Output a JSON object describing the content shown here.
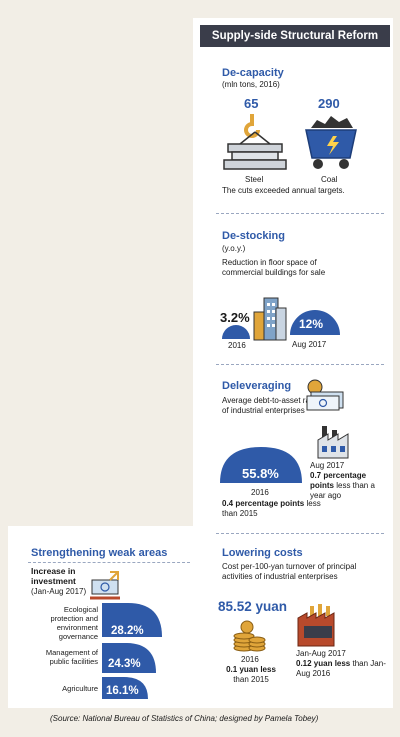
{
  "header": {
    "title": "Supply-side Structural Reform"
  },
  "decapacity": {
    "title": "De-capacity",
    "unit": "(mln tons, 2016)",
    "steel_value": "65",
    "steel_label": "Steel",
    "coal_value": "290",
    "coal_label": "Coal",
    "note": "The cuts exceeded annual targets."
  },
  "destocking": {
    "title": "De-stocking",
    "unit": "(y.o.y.)",
    "desc": "Reduction in floor space of commercial buildings for sale",
    "v2016": "3.2%",
    "l2016": "2016",
    "vAug": "12%",
    "lAug": "Aug 2017"
  },
  "deleveraging": {
    "title": "Deleveraging",
    "desc": "Average debt-to-asset ratio of industrial enterprises",
    "big_value": "55.8%",
    "big_year": "2016",
    "big_note_bold": "0.4 percentage points",
    "big_note_rest": "less than 2015",
    "aug_label": "Aug 2017",
    "aug_note_bold": "0.7 percentage points",
    "aug_note_rest": "less than a year ago"
  },
  "weak": {
    "title": "Strengthening weak areas",
    "sub_bold": "Increase in investment",
    "sub_rest": "(Jan-Aug 2017)",
    "items": [
      {
        "label": "Ecological protection and environment governance",
        "value": "28.2%"
      },
      {
        "label": "Management of public facilities",
        "value": "24.3%"
      },
      {
        "label": "Agriculture",
        "value": "16.1%"
      }
    ]
  },
  "costs": {
    "title": "Lowering costs",
    "desc": "Cost per-100-yan turnover of principal activities of industrial enterprises",
    "value": "85.52 yuan",
    "l2016": "2016",
    "n2016_bold": "0.1 yuan less",
    "n2016_rest": "than 2015",
    "lAug": "Jan-Aug 2017",
    "nAug_bold": "0.12 yuan less",
    "nAug_rest": "than Jan-Aug 2016"
  },
  "source": "(Source: National Bureau of Statistics of China; designed by Pamela Tobey)",
  "colors": {
    "accent": "#2f5aa8",
    "dark": "#3a3d4a",
    "gold": "#e0a53a",
    "red": "#b84a2c",
    "bg": "#f2eee6"
  }
}
